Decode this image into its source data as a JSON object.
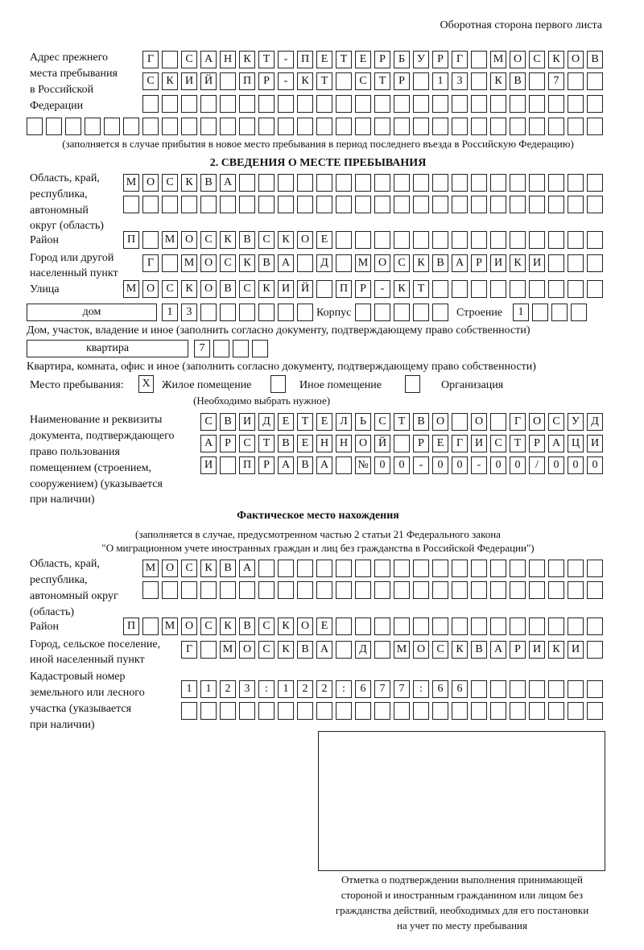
{
  "header": "Оборотная сторона первого листа",
  "prev_address": {
    "label": [
      "Адрес прежнего",
      "места пребывания",
      "в Российской",
      "Федерации"
    ],
    "rows": [
      [
        "Г",
        " ",
        "С",
        "А",
        "Н",
        "К",
        "Т",
        "-",
        "П",
        "Е",
        "Т",
        "Е",
        "Р",
        "Б",
        "У",
        "Р",
        "Г",
        " ",
        "М",
        "О",
        "С",
        "К",
        "О",
        "В"
      ],
      [
        "С",
        "К",
        "И",
        "Й",
        " ",
        "П",
        "Р",
        "-",
        "К",
        "Т",
        " ",
        "С",
        "Т",
        "Р",
        " ",
        "1",
        "3",
        " ",
        "К",
        "В",
        " ",
        "7",
        " ",
        " "
      ],
      [
        " ",
        " ",
        " ",
        " ",
        " ",
        " ",
        " ",
        " ",
        " ",
        " ",
        " ",
        " ",
        " ",
        " ",
        " ",
        " ",
        " ",
        " ",
        " ",
        " ",
        " ",
        " ",
        " ",
        " "
      ],
      [
        " ",
        " ",
        " ",
        " ",
        " ",
        " ",
        " ",
        " ",
        " ",
        " ",
        " ",
        " ",
        " ",
        " ",
        " ",
        " ",
        " ",
        " ",
        " ",
        " ",
        " ",
        " ",
        " ",
        " ",
        " ",
        " ",
        " ",
        " ",
        " ",
        " "
      ]
    ],
    "note": "(заполняется в случае прибытия в новое место пребывания в период последнего въезда в Российскую Федерацию)"
  },
  "section2": {
    "title": "2. СВЕДЕНИЯ О МЕСТЕ ПРЕБЫВАНИЯ",
    "region_label": [
      "Область, край,",
      "республика,",
      "автономный",
      "округ (область)"
    ],
    "region_rows": [
      [
        "М",
        "О",
        "С",
        "К",
        "В",
        "А",
        " ",
        " ",
        " ",
        " ",
        " ",
        " ",
        " ",
        " ",
        " ",
        " ",
        " ",
        " ",
        " ",
        " ",
        " ",
        " ",
        " ",
        " ",
        " "
      ],
      [
        " ",
        " ",
        " ",
        " ",
        " ",
        " ",
        " ",
        " ",
        " ",
        " ",
        " ",
        " ",
        " ",
        " ",
        " ",
        " ",
        " ",
        " ",
        " ",
        " ",
        " ",
        " ",
        " ",
        " ",
        " "
      ]
    ],
    "district_label": "Район",
    "district_row": [
      "П",
      " ",
      "М",
      "О",
      "С",
      "К",
      "В",
      "С",
      "К",
      "О",
      "Е",
      " ",
      " ",
      " ",
      " ",
      " ",
      " ",
      " ",
      " ",
      " ",
      " ",
      " ",
      " ",
      " ",
      " "
    ],
    "city_label": [
      "Город или другой",
      "населенный пункт"
    ],
    "city_row": [
      "Г",
      " ",
      "М",
      "О",
      "С",
      "К",
      "В",
      "А",
      " ",
      "Д",
      " ",
      "М",
      "О",
      "С",
      "К",
      "В",
      "А",
      "Р",
      "И",
      "К",
      "И",
      " ",
      " ",
      " "
    ],
    "street_label": "Улица",
    "street_row": [
      "М",
      "О",
      "С",
      "К",
      "О",
      "В",
      "С",
      "К",
      "И",
      "Й",
      " ",
      "П",
      "Р",
      "-",
      "К",
      "Т",
      " ",
      " ",
      " ",
      " ",
      " ",
      " ",
      " ",
      " ",
      " "
    ],
    "house_type": "дом",
    "house_cells": [
      "1",
      "3",
      " ",
      " ",
      " ",
      " ",
      " ",
      " "
    ],
    "korpus_label": "Корпус",
    "korpus_cells": [
      " ",
      " ",
      " ",
      " ",
      " "
    ],
    "stroenie_label": "Строение",
    "stroenie_cells": [
      "1",
      " ",
      " ",
      " "
    ],
    "house_note": "Дом, участок, владение и иное (заполнить согласно документу, подтверждающему право собственности)",
    "flat_type": "квартира",
    "flat_cells": [
      "7",
      " ",
      " ",
      " "
    ],
    "flat_note": "Квартира, комната, офис и иное (заполнить согласно документу, подтверждающему право собственности)",
    "stay_place_label": "Место пребывания:",
    "options": [
      {
        "mark": "X",
        "label": "Жилое помещение"
      },
      {
        "mark": "",
        "label": "Иное помещение"
      },
      {
        "mark": "",
        "label": "Организация"
      }
    ],
    "choose_note": "(Необходимо выбрать нужное)",
    "doc_label": [
      "Наименование и реквизиты",
      "документа, подтверждающего",
      "право пользования",
      "помещением (строением,",
      "сооружением) (указывается",
      "при наличии)"
    ],
    "doc_rows": [
      [
        "С",
        "В",
        "И",
        "Д",
        "Е",
        "Т",
        "Е",
        "Л",
        "Ь",
        "С",
        "Т",
        "В",
        "О",
        " ",
        "О",
        " ",
        "Г",
        "О",
        "С",
        "У",
        "Д"
      ],
      [
        "А",
        "Р",
        "С",
        "Т",
        "В",
        "Е",
        "Н",
        "Н",
        "О",
        "Й",
        " ",
        "Р",
        "Е",
        "Г",
        "И",
        "С",
        "Т",
        "Р",
        "А",
        "Ц",
        "И"
      ],
      [
        "И",
        " ",
        "П",
        "Р",
        "А",
        "В",
        "А",
        " ",
        "№",
        "0",
        "0",
        "-",
        "0",
        "0",
        "-",
        "0",
        "0",
        "/",
        "0",
        "0",
        "0"
      ]
    ]
  },
  "actual": {
    "title": "Фактическое место нахождения",
    "note": [
      "(заполняется в случае, предусмотренном частью 2 статьи 21 Федерального закона",
      "\"О миграционном учете иностранных граждан и лиц без гражданства в Российской Федерации\")"
    ],
    "region_label": [
      "Область, край,",
      "республика,",
      "автономный округ",
      "(область)"
    ],
    "region_rows": [
      [
        "М",
        "О",
        "С",
        "К",
        "В",
        "А",
        " ",
        " ",
        " ",
        " ",
        " ",
        " ",
        " ",
        " ",
        " ",
        " ",
        " ",
        " ",
        " ",
        " ",
        " ",
        " ",
        " ",
        " "
      ],
      [
        " ",
        " ",
        " ",
        " ",
        " ",
        " ",
        " ",
        " ",
        " ",
        " ",
        " ",
        " ",
        " ",
        " ",
        " ",
        " ",
        " ",
        " ",
        " ",
        " ",
        " ",
        " ",
        " ",
        " "
      ]
    ],
    "district_label": "Район",
    "district_row": [
      "П",
      " ",
      "М",
      "О",
      "С",
      "К",
      "В",
      "С",
      "К",
      "О",
      "Е",
      " ",
      " ",
      " ",
      " ",
      " ",
      " ",
      " ",
      " ",
      " ",
      " ",
      " ",
      " ",
      " ",
      " "
    ],
    "city_label": [
      "Город, сельское поселение,",
      "иной населенный пункт"
    ],
    "city_row": [
      "Г",
      " ",
      "М",
      "О",
      "С",
      "К",
      "В",
      "А",
      " ",
      "Д",
      " ",
      "М",
      "О",
      "С",
      "К",
      "В",
      "А",
      "Р",
      "И",
      "К",
      "И",
      " "
    ],
    "cadastre_label": [
      "Кадастровый номер",
      "земельного или лесного",
      "участка (указывается",
      "при наличии)"
    ],
    "cadastre_rows": [
      [
        "1",
        "1",
        "2",
        "3",
        ":",
        "1",
        "2",
        "2",
        ":",
        "6",
        "7",
        "7",
        ":",
        "6",
        "6",
        " ",
        " ",
        " ",
        " ",
        " ",
        " ",
        " "
      ],
      [
        " ",
        " ",
        " ",
        " ",
        " ",
        " ",
        " ",
        " ",
        " ",
        " ",
        " ",
        " ",
        " ",
        " ",
        " ",
        " ",
        " ",
        " ",
        " ",
        " ",
        " ",
        " "
      ]
    ],
    "stamp_caption": [
      "Отметка о подтверждении выполнения принимающей",
      "стороной и иностранным гражданином или лицом без",
      "гражданства действий, необходимых для его постановки",
      "на учет по месту пребывания"
    ]
  }
}
